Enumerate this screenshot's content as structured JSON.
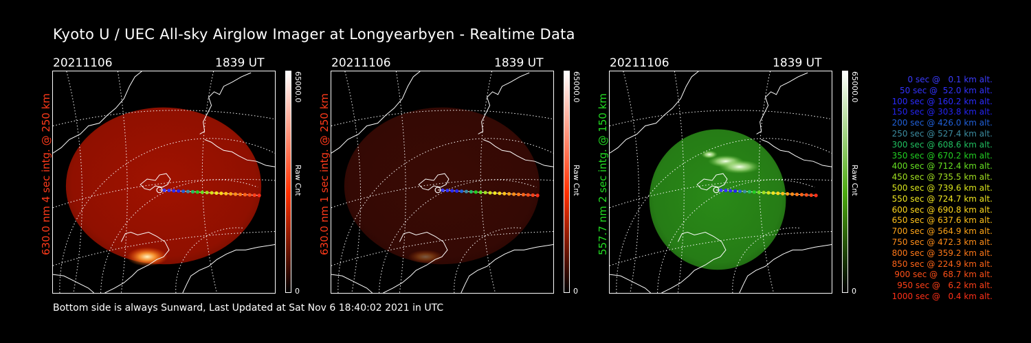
{
  "title": "Kyoto U / UEC All-sky Airglow Imager at Longyearbyen - Realtime Data",
  "footer": "Bottom side is always Sunward, Last Updated at Sat Nov  6 18:40:02 2021 in UTC",
  "panels": [
    {
      "date": "20211106",
      "time": "1839 UT",
      "label": "630.0 nm 4 sec intg. @ 250 km",
      "label_color": "#ff3a1a",
      "cbar_max": "65000.0",
      "cbar_min": "0",
      "cbar_unit": "Raw Cnt",
      "cbar_color": "#ff3000",
      "sky_color": "#a01200"
    },
    {
      "date": "20211106",
      "time": "1839 UT",
      "label": "630.0 nm 1 sec intg. @ 250 km",
      "label_color": "#ff3a1a",
      "cbar_max": "65000.0",
      "cbar_min": "0",
      "cbar_unit": "Raw Cnt",
      "cbar_color": "#ff3000",
      "sky_color": "#3a0a04"
    },
    {
      "date": "20211106",
      "time": "1839 UT",
      "label": "557.7 nm 2 sec intg. @ 150 km",
      "label_color": "#22dd22",
      "cbar_max": "65000.0",
      "cbar_min": "0",
      "cbar_unit": "Raw Cnt",
      "cbar_color": "#4caa10",
      "sky_color": "#2a8a18"
    }
  ],
  "legend": [
    {
      "text": "0 sec @   0.1 km alt.",
      "color": "#3b3bff"
    },
    {
      "text": "50 sec @  52.0 km alt.",
      "color": "#3232ff"
    },
    {
      "text": "100 sec @ 160.2 km alt.",
      "color": "#2b2bff"
    },
    {
      "text": "150 sec @ 303.8 km alt.",
      "color": "#2424f0"
    },
    {
      "text": "200 sec @ 426.0 km alt.",
      "color": "#2060d8"
    },
    {
      "text": "250 sec @ 527.4 km alt.",
      "color": "#3c8ca0"
    },
    {
      "text": "300 sec @ 608.6 km alt.",
      "color": "#20c060"
    },
    {
      "text": "350 sec @ 670.2 km alt.",
      "color": "#22d022"
    },
    {
      "text": "400 sec @ 712.4 km alt.",
      "color": "#66e022"
    },
    {
      "text": "450 sec @ 735.5 km alt.",
      "color": "#a0e020"
    },
    {
      "text": "500 sec @ 739.6 km alt.",
      "color": "#d8e41c"
    },
    {
      "text": "550 sec @ 724.7 km alt.",
      "color": "#f0e620"
    },
    {
      "text": "600 sec @ 690.8 km alt.",
      "color": "#ffd81c"
    },
    {
      "text": "650 sec @ 637.6 km alt.",
      "color": "#ffc01a"
    },
    {
      "text": "700 sec @ 564.9 km alt.",
      "color": "#ffa418"
    },
    {
      "text": "750 sec @ 472.3 km alt.",
      "color": "#ff8c18"
    },
    {
      "text": "800 sec @ 359.2 km alt.",
      "color": "#ff7818"
    },
    {
      "text": "850 sec @ 224.9 km alt.",
      "color": "#ff6418"
    },
    {
      "text": "900 sec @  68.7 km alt.",
      "color": "#ff5018"
    },
    {
      "text": "950 sec @   6.2 km alt.",
      "color": "#ff4018"
    },
    {
      "text": "1000 sec @   0.4 km alt.",
      "color": "#ff3018"
    }
  ]
}
